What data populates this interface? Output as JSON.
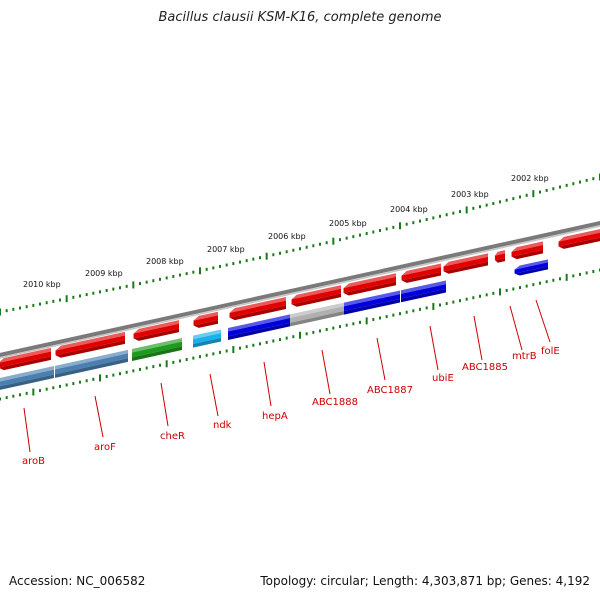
{
  "title": "Bacillus clausii KSM-K16, complete genome",
  "footer": {
    "accession": "Accession: NC_006582",
    "summary": "Topology: circular; Length: 4,303,871 bp; Genes: 4,192"
  },
  "scale_labels": [
    "2002 kbp",
    "2003 kbp",
    "2004 kbp",
    "2005 kbp",
    "2006 kbp",
    "2007 kbp",
    "2008 kbp",
    "2009 kbp",
    "2010 kbp"
  ],
  "gene_labels": [
    "folE",
    "mtrB",
    "ABC1885",
    "ubiE",
    "ABC1887",
    "ABC1888",
    "hepA",
    "ndk",
    "cheR",
    "aroF",
    "aroB"
  ],
  "colors": {
    "backbone": "#7a7a7a",
    "forward_gene": "#e00000",
    "tick": "#1a7a1a",
    "label": "#cc0000",
    "blue": "#0000dd",
    "steel_blue": "#4a7fb0",
    "green": "#1e9a1e",
    "cyan": "#1ab0e8",
    "grey": "#b0b0b0"
  }
}
